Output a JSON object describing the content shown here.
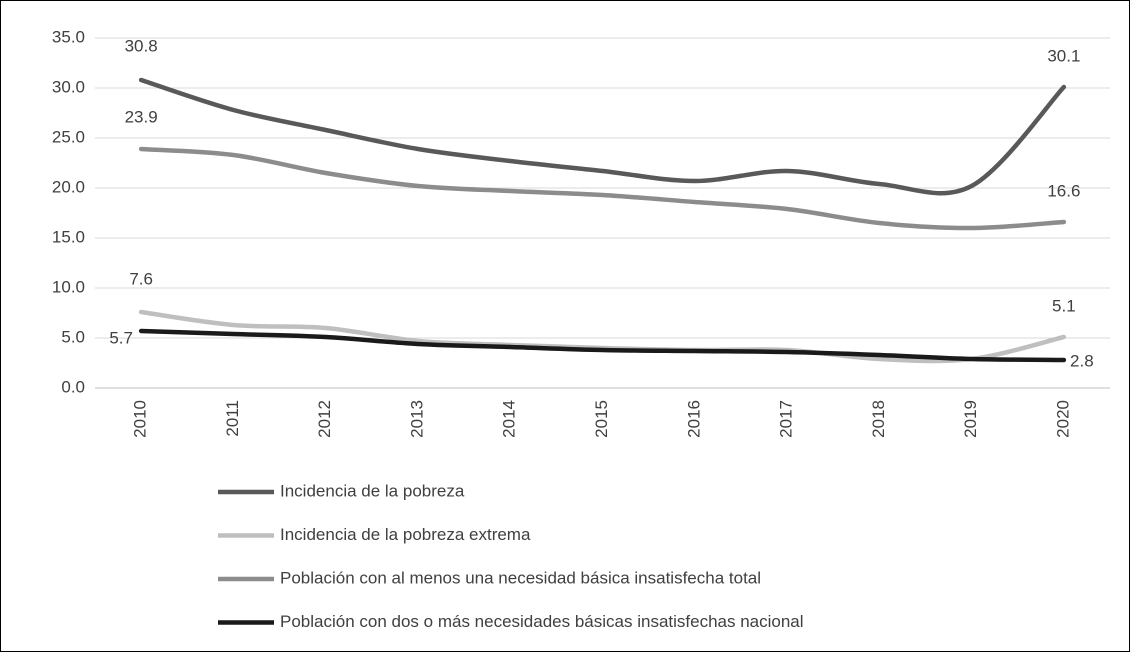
{
  "chart_data": {
    "type": "line",
    "categories": [
      "2010",
      "2011",
      "2012",
      "2013",
      "2014",
      "2015",
      "2016",
      "2017",
      "2018",
      "2019",
      "2020"
    ],
    "series": [
      {
        "name": "Incidencia de la pobreza",
        "color": "#595959",
        "values": [
          30.8,
          27.8,
          25.8,
          23.9,
          22.7,
          21.7,
          20.7,
          21.7,
          20.4,
          20.2,
          30.1
        ]
      },
      {
        "name": "Incidencia de la pobreza extrema",
        "color": "#bfbfbf",
        "values": [
          7.6,
          6.3,
          6.0,
          4.7,
          4.3,
          4.0,
          3.8,
          3.8,
          2.9,
          2.9,
          5.1
        ]
      },
      {
        "name": "Población con al menos una necesidad básica insatisfecha total",
        "color": "#8c8c8c",
        "values": [
          23.9,
          23.3,
          21.5,
          20.2,
          19.7,
          19.3,
          18.6,
          17.9,
          16.5,
          16.0,
          16.6
        ]
      },
      {
        "name": "Población con dos o más necesidades básicas insatisfechas nacional",
        "color": "#1a1a1a",
        "values": [
          5.7,
          5.4,
          5.1,
          4.4,
          4.1,
          3.8,
          3.7,
          3.6,
          3.3,
          2.9,
          2.8
        ]
      }
    ],
    "ylim": [
      0,
      35
    ],
    "yticks": [
      {
        "value": 0,
        "label": "0.0"
      },
      {
        "value": 5,
        "label": "5.0"
      },
      {
        "value": 10,
        "label": "10.0"
      },
      {
        "value": 15,
        "label": "15.0"
      },
      {
        "value": 20,
        "label": "20.0"
      },
      {
        "value": 25,
        "label": "25.0"
      },
      {
        "value": 30,
        "label": "30.0"
      },
      {
        "value": 35,
        "label": "35.0"
      }
    ],
    "grid": true,
    "legend": "bottom"
  }
}
